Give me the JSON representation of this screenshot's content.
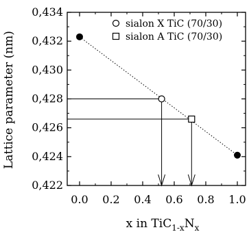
{
  "chart_data": {
    "type": "scatter",
    "xlabel": "x in TiC",
    "xlabel_sub1": "1-x",
    "xlabel_mid": "N",
    "xlabel_sub2": "x",
    "ylabel": "Lattice parameter (nm)",
    "xlim": [
      0.0,
      1.0
    ],
    "ylim": [
      0.422,
      0.434
    ],
    "xticks": [
      0.0,
      0.2,
      0.4,
      0.6,
      0.8,
      1.0
    ],
    "xtick_labels": [
      "0.0",
      "0.2",
      "0.4",
      "0.6",
      "0.8",
      "1.0"
    ],
    "yticks": [
      0.422,
      0.424,
      0.426,
      0.428,
      0.43,
      0.432,
      0.434
    ],
    "ytick_labels": [
      "0,422",
      "0,424",
      "0,426",
      "0,428",
      "0,430",
      "0,432",
      "0,434"
    ],
    "legend_position": "top-right",
    "series": [
      {
        "name": "sialon X TiC (70/30)",
        "marker": "circle-open",
        "points": [
          [
            0.52,
            0.428
          ]
        ]
      },
      {
        "name": "sialon A TiC (70/30)",
        "marker": "square-open",
        "points": [
          [
            0.71,
            0.4266
          ]
        ]
      }
    ],
    "reference_points": [
      [
        0.0,
        0.4323
      ],
      [
        1.0,
        0.4241
      ]
    ],
    "reference_line": [
      [
        0.0,
        0.4323
      ],
      [
        1.0,
        0.4241
      ]
    ],
    "grid": false
  }
}
